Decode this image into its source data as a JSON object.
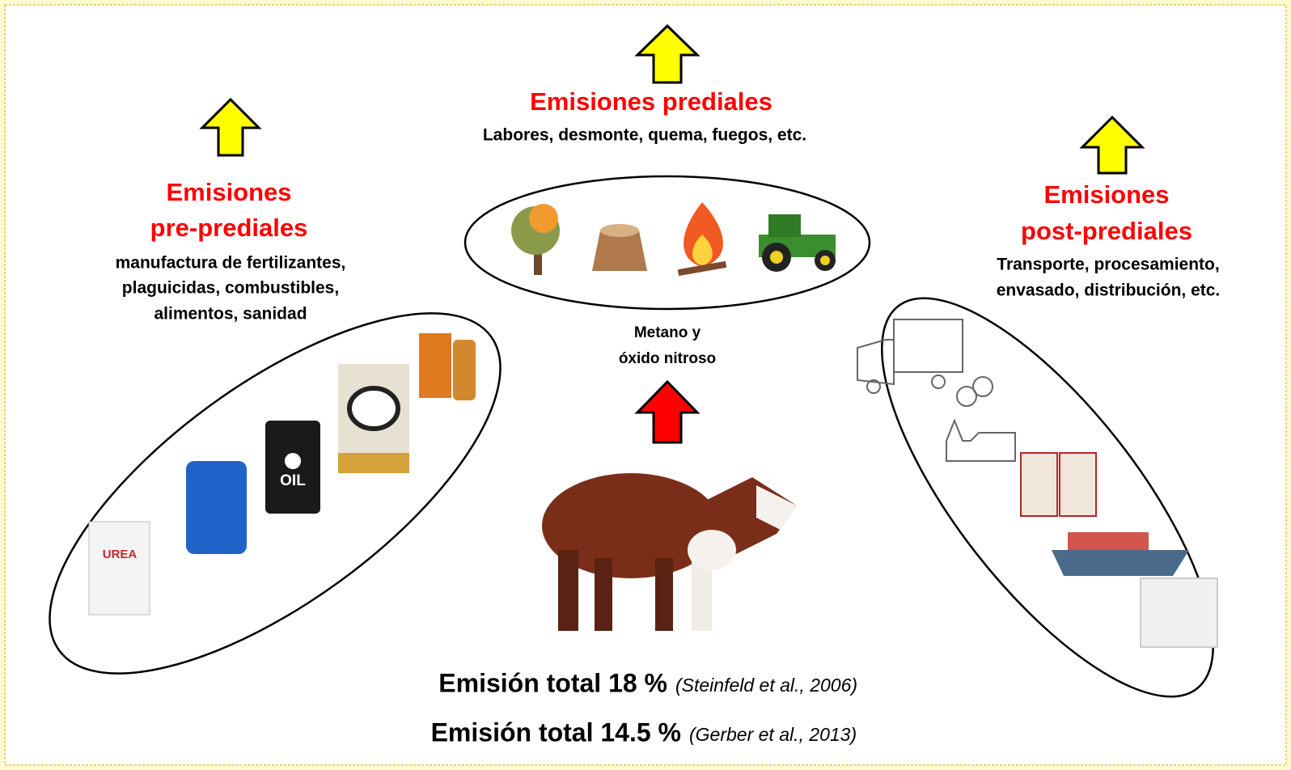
{
  "center": {
    "title": "Emisiones prediales",
    "description": "Labores, desmonte, quema, fuegos, etc."
  },
  "left": {
    "title": [
      "Emisiones",
      "pre-prediales"
    ],
    "description": [
      "manufactura de fertilizantes,",
      "plaguicidas, combustibles,",
      "alimentos, sanidad"
    ],
    "products": [
      "UREA",
      "OIL"
    ]
  },
  "right": {
    "title": [
      "Emisiones",
      "post-prediales"
    ],
    "description": [
      "Transporte, procesamiento,",
      "envasado, distribución, etc."
    ]
  },
  "animal": {
    "label": [
      "Metano y",
      "óxido nitroso"
    ]
  },
  "totals": [
    {
      "text": "Emisión total 18 %",
      "source": "(Steinfeld et al., 2006)"
    },
    {
      "text": "Emisión total 14.5 %",
      "source": "(Gerber et al., 2013)"
    }
  ]
}
